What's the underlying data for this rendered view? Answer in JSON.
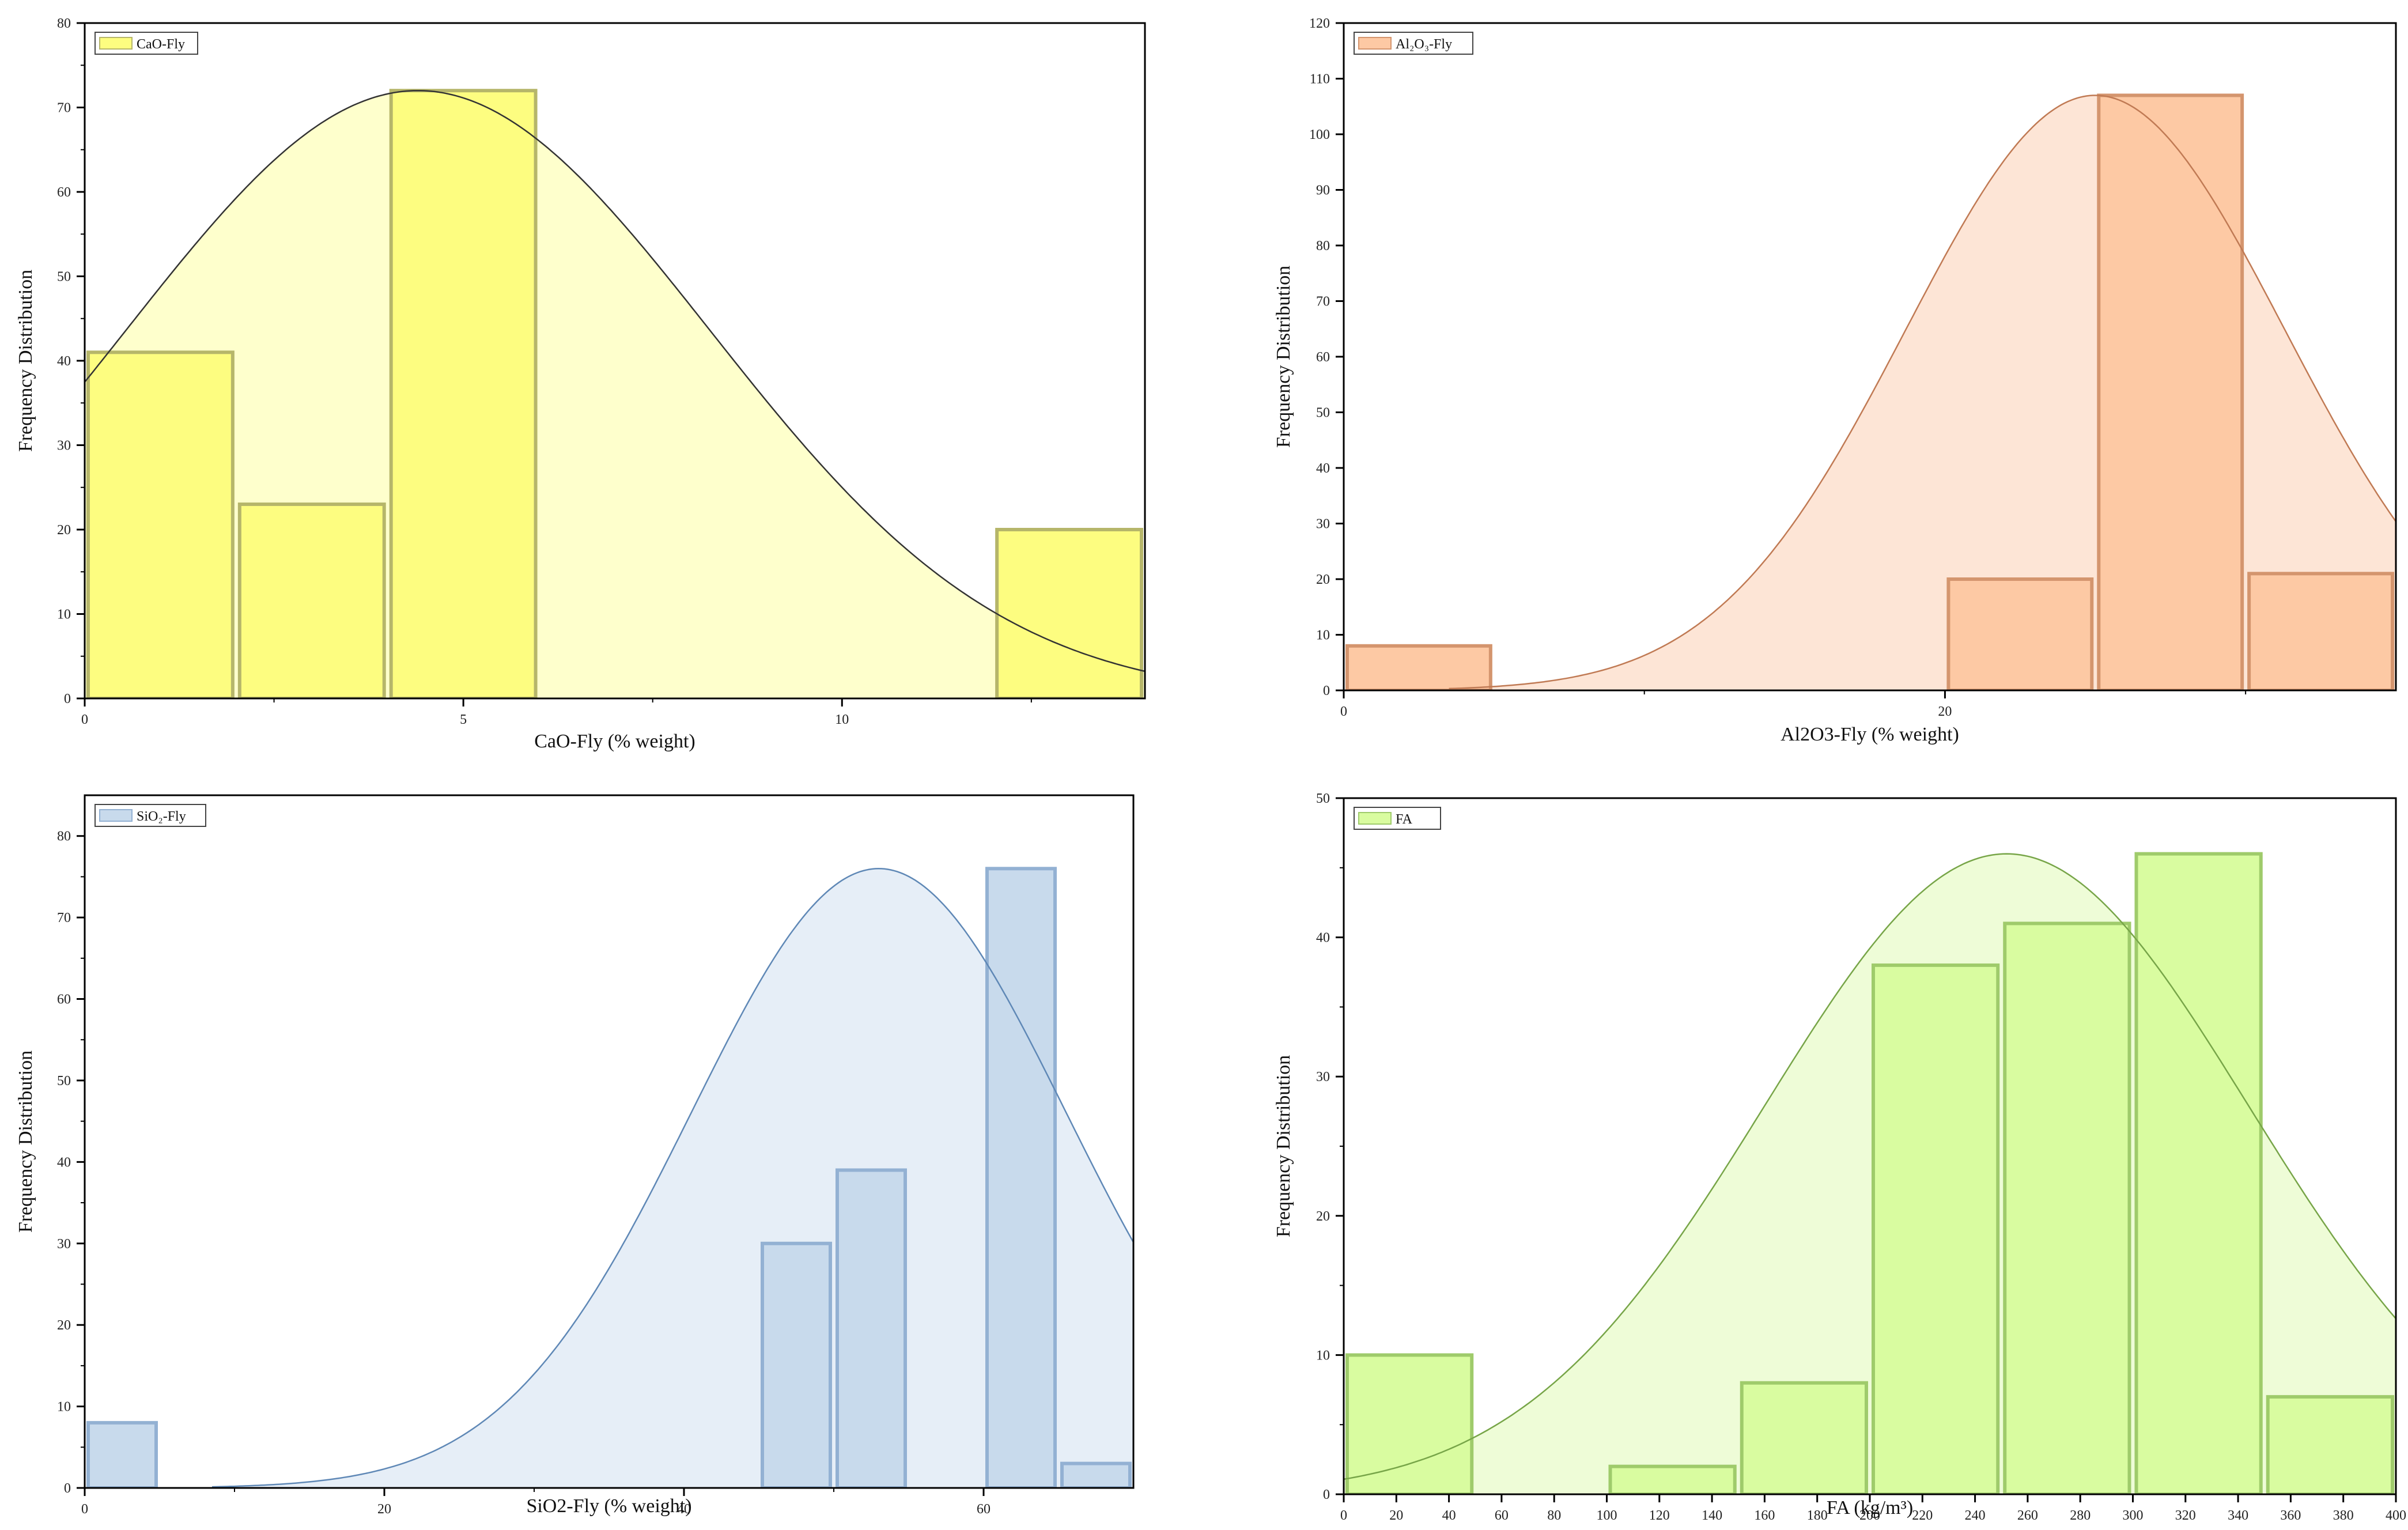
{
  "chart_data": [
    {
      "type": "bar",
      "id": "cao",
      "legend": "CaO-Fly",
      "xlabel": "CaO-Fly (% weight)",
      "ylabel": "Frequency Distribution",
      "xlim": [
        0,
        14
      ],
      "ylim": [
        0,
        80
      ],
      "xticks": [
        0,
        5,
        10
      ],
      "yticks": [
        0,
        10,
        20,
        30,
        40,
        50,
        60,
        70,
        80
      ],
      "bins": [
        {
          "x0": 0,
          "x1": 2,
          "count": 41
        },
        {
          "x0": 2,
          "x1": 4,
          "count": 23
        },
        {
          "x0": 4,
          "x1": 6,
          "count": 72
        },
        {
          "x0": 12,
          "x1": 14,
          "count": 20
        }
      ],
      "curve": {
        "mean": 4.4,
        "sd": 3.85,
        "peak": 72
      },
      "colors": {
        "bar": "#fdfd80",
        "barEdge": "#b6b66a",
        "area": "#feffcc",
        "curve": "#333333"
      }
    },
    {
      "type": "bar",
      "id": "al2o3",
      "legend": "Al₂O₃-Fly",
      "xlabel": "Al2O3-Fly (% weight)",
      "ylabel": "Frequency Distribution",
      "xlim": [
        0,
        35
      ],
      "ylim": [
        0,
        120
      ],
      "xticks": [
        0,
        20
      ],
      "yticks": [
        0,
        10,
        20,
        30,
        40,
        50,
        60,
        70,
        80,
        90,
        100,
        110,
        120
      ],
      "bins": [
        {
          "x0": 0,
          "x1": 5,
          "count": 8
        },
        {
          "x0": 20,
          "x1": 25,
          "count": 20
        },
        {
          "x0": 25,
          "x1": 30,
          "count": 107
        },
        {
          "x0": 30,
          "x1": 35,
          "count": 21
        }
      ],
      "curve": {
        "mean": 25.0,
        "sd": 6.3,
        "peak": 107,
        "start": 3.5
      },
      "colors": {
        "bar": "#fdc9a4",
        "barEdge": "#d4956e",
        "area": "#fde5d6",
        "curve": "#c07a54"
      }
    },
    {
      "type": "bar",
      "id": "sio2",
      "legend": "SiO₂-Fly",
      "xlabel": "SiO2-Fly (% weight)",
      "ylabel": "Frequency Distribution",
      "xlim": [
        0,
        70
      ],
      "ylim": [
        0,
        85
      ],
      "xticks": [
        0,
        20,
        40,
        60
      ],
      "yticks": [
        0,
        10,
        20,
        30,
        40,
        50,
        60,
        70,
        80
      ],
      "bins": [
        {
          "x0": 0,
          "x1": 5,
          "count": 8
        },
        {
          "x0": 45,
          "x1": 50,
          "count": 30
        },
        {
          "x0": 50,
          "x1": 55,
          "count": 39
        },
        {
          "x0": 60,
          "x1": 65,
          "count": 76
        },
        {
          "x0": 65,
          "x1": 70,
          "count": 3
        }
      ],
      "curve": {
        "mean": 53.0,
        "sd": 12.5,
        "peak": 76,
        "start": 8.5
      },
      "colors": {
        "bar": "#c8daec",
        "barEdge": "#93b1d3",
        "area": "#e6eef7",
        "curve": "#5f88b6"
      }
    },
    {
      "type": "bar",
      "id": "fa",
      "legend": "FA",
      "xlabel": "FA (kg/m³)",
      "ylabel": "Frequency Distribution",
      "xlim": [
        0,
        400
      ],
      "ylim": [
        0,
        50
      ],
      "xticks": [
        0,
        20,
        40,
        60,
        80,
        100,
        120,
        140,
        160,
        180,
        200,
        220,
        240,
        260,
        280,
        300,
        320,
        340,
        360,
        380,
        400
      ],
      "yticks": [
        0,
        10,
        20,
        30,
        40,
        50
      ],
      "bins": [
        {
          "x0": 0,
          "x1": 50,
          "count": 10
        },
        {
          "x0": 100,
          "x1": 150,
          "count": 2
        },
        {
          "x0": 150,
          "x1": 200,
          "count": 8
        },
        {
          "x0": 200,
          "x1": 250,
          "count": 38
        },
        {
          "x0": 250,
          "x1": 300,
          "count": 41
        },
        {
          "x0": 300,
          "x1": 350,
          "count": 46
        },
        {
          "x0": 350,
          "x1": 400,
          "count": 7
        }
      ],
      "curve": {
        "mean": 252,
        "sd": 92,
        "peak": 46
      },
      "colors": {
        "bar": "#d9fca0",
        "barEdge": "#9fcb6b",
        "area": "#eefcd7",
        "curve": "#77a548"
      }
    }
  ]
}
